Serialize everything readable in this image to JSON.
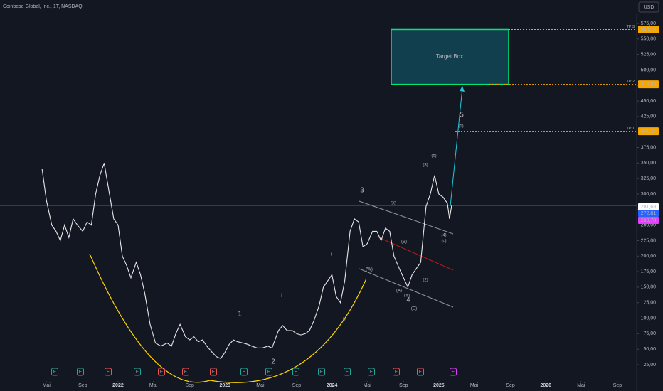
{
  "chart_data": {
    "type": "line",
    "title": "Coinbase Global, Inc., 1T, NASDAQ",
    "currency_button": "USD",
    "x": [
      2021.29,
      2021.33,
      2021.38,
      2021.42,
      2021.46,
      2021.5,
      2021.54,
      2021.58,
      2021.62,
      2021.67,
      2021.71,
      2021.75,
      2021.79,
      2021.83,
      2021.87,
      2021.92,
      2021.96,
      2022.0,
      2022.04,
      2022.08,
      2022.12,
      2022.17,
      2022.21,
      2022.25,
      2022.3,
      2022.35,
      2022.4,
      2022.46,
      2022.5,
      2022.54,
      2022.58,
      2022.63,
      2022.67,
      2022.71,
      2022.75,
      2022.79,
      2022.83,
      2022.88,
      2022.92,
      2022.96,
      2023.0,
      2023.04,
      2023.08,
      2023.12,
      2023.17,
      2023.21,
      2023.25,
      2023.3,
      2023.35,
      2023.4,
      2023.44,
      2023.5,
      2023.54,
      2023.58,
      2023.63,
      2023.67,
      2023.71,
      2023.75,
      2023.79,
      2023.83,
      2023.88,
      2023.92,
      2023.96,
      2024.0,
      2024.04,
      2024.08,
      2024.12,
      2024.17,
      2024.21,
      2024.25,
      2024.29,
      2024.33,
      2024.38,
      2024.42,
      2024.46,
      2024.5,
      2024.54,
      2024.58,
      2024.63,
      2024.67,
      2024.71,
      2024.75,
      2024.79,
      2024.83,
      2024.88,
      2024.92,
      2024.96,
      2025.0,
      2025.04,
      2025.08,
      2025.1,
      2025.12
    ],
    "series": [
      {
        "name": "Coinbase Global, Inc.",
        "color": "#e8e8e8",
        "values": [
          340,
          290,
          250,
          240,
          225,
          250,
          230,
          260,
          250,
          240,
          255,
          250,
          300,
          330,
          350,
          300,
          260,
          250,
          200,
          185,
          165,
          190,
          170,
          140,
          90,
          60,
          55,
          60,
          55,
          75,
          90,
          70,
          65,
          70,
          62,
          65,
          55,
          45,
          38,
          35,
          45,
          58,
          65,
          62,
          60,
          58,
          55,
          52,
          52,
          55,
          52,
          80,
          88,
          80,
          80,
          75,
          73,
          75,
          80,
          95,
          120,
          150,
          160,
          170,
          135,
          125,
          160,
          240,
          260,
          255,
          215,
          220,
          240,
          240,
          225,
          245,
          240,
          200,
          180,
          165,
          150,
          170,
          180,
          190,
          280,
          300,
          330,
          300,
          295,
          285,
          260,
          281.63
        ]
      }
    ],
    "xlim": [
      2020.896,
      2026.85
    ],
    "xticks": [
      {
        "value": 2021.33,
        "label": "Mai"
      },
      {
        "value": 2021.67,
        "label": "Sep"
      },
      {
        "value": 2022.0,
        "label": "2022"
      },
      {
        "value": 2022.33,
        "label": "Mai"
      },
      {
        "value": 2022.67,
        "label": "Sep"
      },
      {
        "value": 2023.0,
        "label": "2023"
      },
      {
        "value": 2023.33,
        "label": "Mai"
      },
      {
        "value": 2023.67,
        "label": "Sep"
      },
      {
        "value": 2024.0,
        "label": "2024"
      },
      {
        "value": 2024.33,
        "label": "Mai"
      },
      {
        "value": 2024.67,
        "label": "Sep"
      },
      {
        "value": 2025.0,
        "label": "2025"
      },
      {
        "value": 2025.33,
        "label": "Mai"
      },
      {
        "value": 2025.67,
        "label": "Sep"
      },
      {
        "value": 2026.0,
        "label": "2026"
      },
      {
        "value": 2026.33,
        "label": "Mai"
      },
      {
        "value": 2026.67,
        "label": "Sep"
      }
    ],
    "ylim": [
      -17.4,
      612.8
    ],
    "yticks": [
      {
        "value": 25,
        "label": "25,00"
      },
      {
        "value": 50,
        "label": "50,00"
      },
      {
        "value": 75,
        "label": "75,00"
      },
      {
        "value": 100,
        "label": "100,00"
      },
      {
        "value": 125,
        "label": "125,00"
      },
      {
        "value": 150,
        "label": "150,00"
      },
      {
        "value": 175,
        "label": "175,00"
      },
      {
        "value": 200,
        "label": "200,00"
      },
      {
        "value": 225,
        "label": "225,00"
      },
      {
        "value": 250,
        "label": "250,00"
      },
      {
        "value": 275,
        "label": "275,00"
      },
      {
        "value": 300,
        "label": "300,00"
      },
      {
        "value": 325,
        "label": "325,00"
      },
      {
        "value": 350,
        "label": "350,00"
      },
      {
        "value": 375,
        "label": "375,00"
      },
      {
        "value": 400,
        "label": "400,00"
      },
      {
        "value": 425,
        "label": "425,00"
      },
      {
        "value": 450,
        "label": "450,00"
      },
      {
        "value": 475,
        "label": "475,00"
      },
      {
        "value": 500,
        "label": "500,00"
      },
      {
        "value": 525,
        "label": "525,00"
      },
      {
        "value": 550,
        "label": "550,00"
      },
      {
        "value": 575,
        "label": "575,00"
      }
    ],
    "targets": [
      {
        "name": "TP 3",
        "value": 565.29,
        "label": "565,29"
      },
      {
        "name": "TP 2",
        "value": 476.89,
        "label": "476,89"
      },
      {
        "name": "TP 1",
        "value": 401.27,
        "label": "401,27"
      }
    ],
    "target_box": {
      "label": "Target Box"
    },
    "price_labels": [
      {
        "value": 281.63,
        "label": "281,63",
        "color": "#ffffff"
      },
      {
        "value": 272.81,
        "label": "272,81",
        "color": "#2962ff"
      },
      {
        "value": 269.7,
        "label": "269,70",
        "color": "#e040fb"
      }
    ],
    "annotations": [
      {
        "text": "3",
        "color": "#26c6da"
      },
      {
        "text": "(X)",
        "color": "#e0e0e0"
      },
      {
        "text": "1",
        "color": "#26c6da"
      },
      {
        "text": "2",
        "color": "#26c6da"
      },
      {
        "text": "4",
        "color": "#26c6da"
      },
      {
        "text": "5",
        "color": "#26c6da"
      },
      {
        "text": "(5)",
        "color": "#26c6da"
      },
      {
        "text": "(3)",
        "color": "#26c6da"
      },
      {
        "text": "(b)",
        "color": "#ef5350"
      },
      {
        "text": "(4)",
        "color": "#26c6da"
      },
      {
        "text": "(c)",
        "color": "#ef5350"
      },
      {
        "text": "(W)",
        "color": "#e0e0e0"
      },
      {
        "text": "(B)",
        "color": "#e0e0e0"
      },
      {
        "text": "(A)",
        "color": "#e0e0e0"
      },
      {
        "text": "(Y)",
        "color": "#e0e0e0"
      },
      {
        "text": "(C)",
        "color": "#e0e0e0"
      },
      {
        "text": "(2)",
        "color": "#26c6da"
      },
      {
        "text": "ii",
        "color": "#ef5350"
      },
      {
        "text": "i",
        "color": "#ef5350"
      },
      {
        "text": "iv",
        "color": "#ef5350"
      }
    ],
    "events": [
      {
        "label": "E",
        "color": "#26a69a"
      },
      {
        "label": "E",
        "color": "#26a69a"
      },
      {
        "label": "E",
        "color": "#ef5350"
      },
      {
        "label": "E",
        "color": "#26a69a"
      },
      {
        "label": "E",
        "color": "#ef5350"
      },
      {
        "label": "E",
        "color": "#ef5350"
      },
      {
        "label": "E",
        "color": "#ef5350"
      },
      {
        "label": "E",
        "color": "#26a69a"
      },
      {
        "label": "E",
        "color": "#26a69a"
      },
      {
        "label": "E",
        "color": "#26a69a"
      },
      {
        "label": "E",
        "color": "#26a69a"
      },
      {
        "label": "E",
        "color": "#26a69a"
      },
      {
        "label": "E",
        "color": "#26a69a"
      },
      {
        "label": "E",
        "color": "#ef5350"
      },
      {
        "label": "E",
        "color": "#ef5350"
      },
      {
        "label": "E",
        "color": "#e040fb"
      }
    ]
  }
}
